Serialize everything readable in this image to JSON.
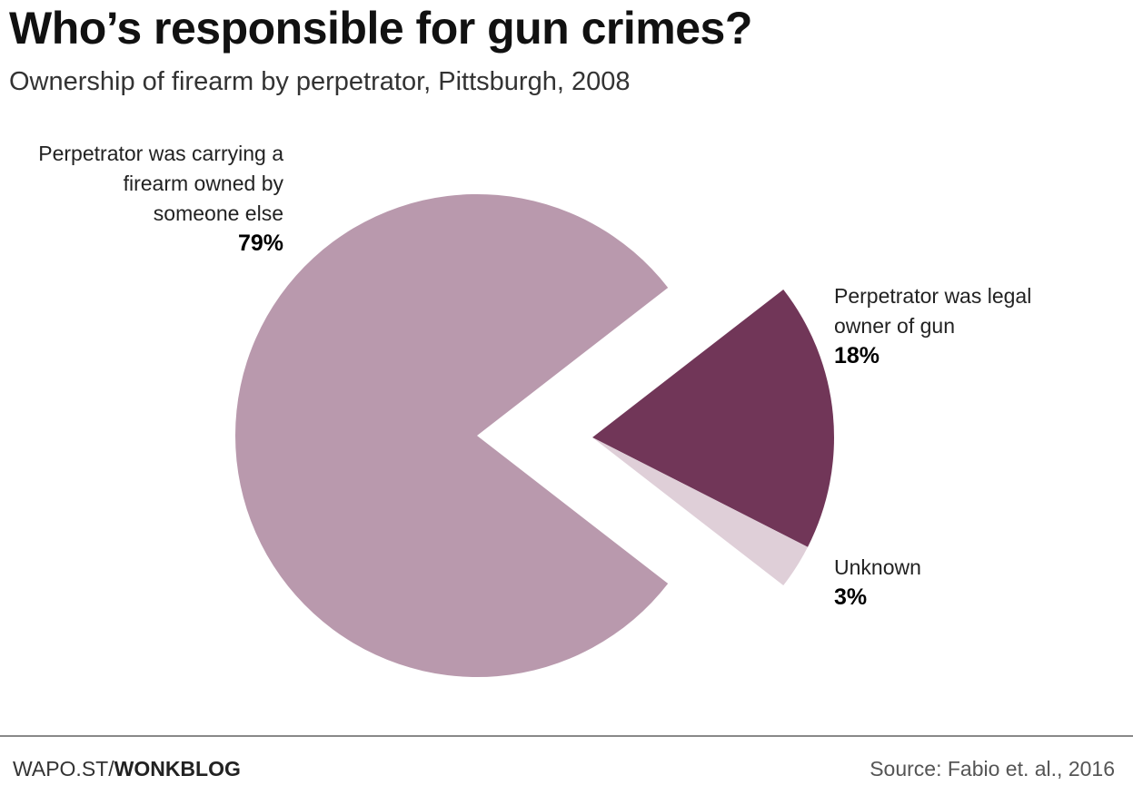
{
  "chart_data": {
    "type": "pie",
    "title": "Who’s responsible for gun crimes?",
    "subtitle": "Ownership of firearm by perpetrator, Pittsburgh, 2008",
    "categories": [
      "Perpetrator was carrying a firearm owned by someone else",
      "Perpetrator was legal owner of gun",
      "Unknown"
    ],
    "values": [
      79,
      18,
      3
    ],
    "value_labels": [
      "79%",
      "18%",
      "3%"
    ],
    "colors": [
      "#b999ad",
      "#713658",
      "#dfcfd8"
    ]
  },
  "footer": {
    "credit_prefix": "WAPO.ST/",
    "credit_bold": "WONKBLOG",
    "source": "Source: Fabio et. al., 2016"
  }
}
